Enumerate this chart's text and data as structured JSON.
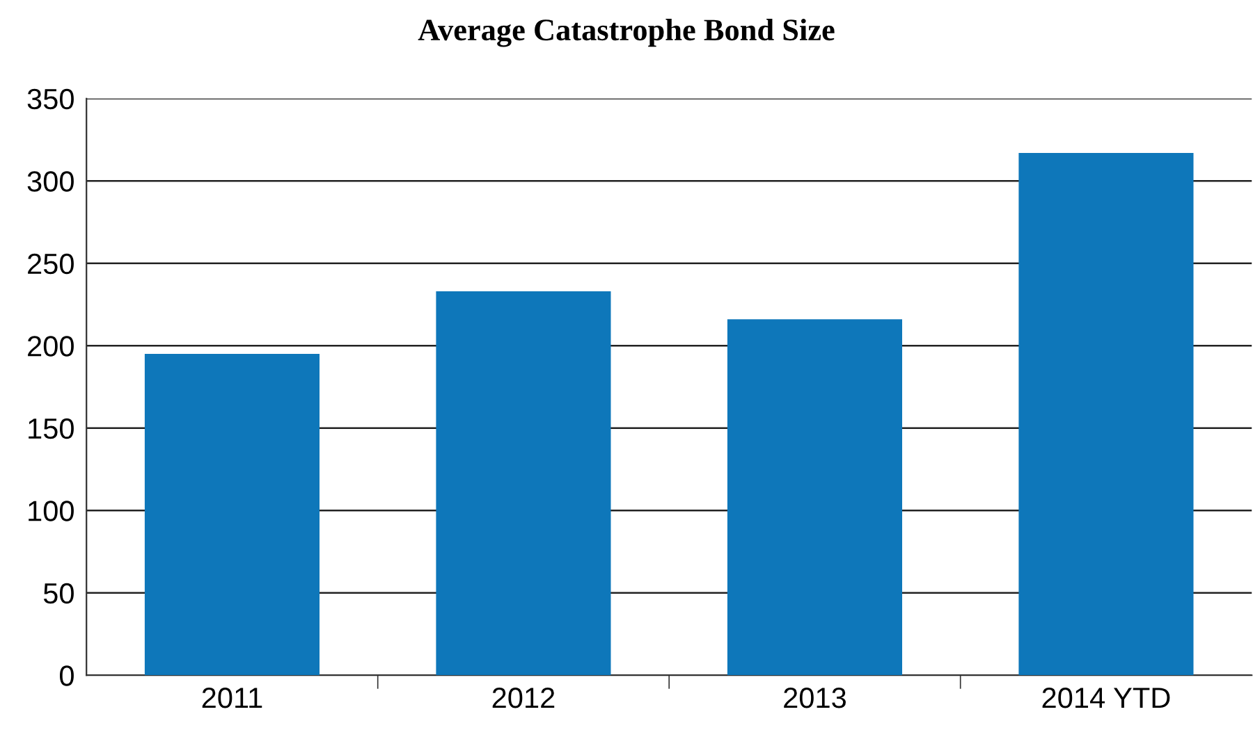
{
  "chart_data": {
    "type": "bar",
    "title": "Average Catastrophe Bond Size",
    "categories": [
      "2011",
      "2012",
      "2013",
      "2014 YTD"
    ],
    "values": [
      195,
      233,
      216,
      317
    ],
    "color": "#0e77ba",
    "ylim": [
      0,
      350
    ],
    "yticks": [
      0,
      50,
      100,
      150,
      200,
      250,
      300,
      350
    ],
    "grid": "y"
  }
}
